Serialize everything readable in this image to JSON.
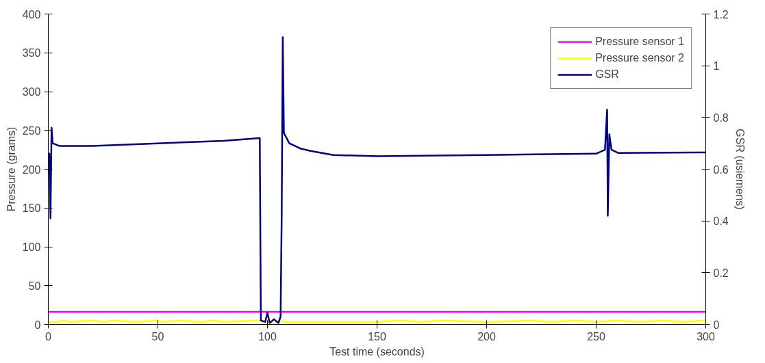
{
  "chart_data": {
    "type": "line",
    "xlabel": "Test time (seconds)",
    "ylabel": "Pressure (grams)",
    "y2label": "GSR (usiemens)",
    "xlim": [
      0,
      300
    ],
    "xticks": [
      0,
      50,
      100,
      150,
      200,
      250,
      300
    ],
    "ylim": [
      0,
      400
    ],
    "yticks": [
      0,
      50,
      100,
      150,
      200,
      250,
      300,
      350,
      400
    ],
    "y2lim": [
      0,
      1.2
    ],
    "y2ticks": [
      0,
      0.2,
      0.4,
      0.6,
      0.8,
      1,
      1.2
    ],
    "grid": false,
    "legend": "top right",
    "marker": "none",
    "line_style": "solid",
    "series": [
      {
        "name": "Pressure sensor 1",
        "color": "#ff00ff",
        "x": [
          0,
          50,
          100,
          150,
          200,
          250,
          300
        ],
        "values": [
          16,
          16,
          16,
          16,
          16,
          16,
          16
        ]
      },
      {
        "name": "Pressure sensor 2",
        "color": "#ffff00",
        "x": [
          0,
          5,
          6,
          10,
          20,
          25,
          30,
          40,
          50,
          52,
          60,
          70,
          75,
          80,
          95,
          100,
          105,
          108,
          150,
          160,
          170,
          180,
          200,
          220,
          230,
          240,
          250,
          260,
          270,
          280,
          290,
          300
        ],
        "values": [
          3,
          3,
          5,
          3,
          5,
          3,
          5,
          3,
          5,
          3,
          5,
          3,
          5,
          3,
          5,
          3,
          5,
          3,
          3,
          5,
          3,
          5,
          3,
          5,
          3,
          5,
          3,
          5,
          3,
          5,
          3,
          5
        ]
      },
      {
        "name": "GSR",
        "color": "#000080",
        "axis": "y2",
        "x": [
          0,
          0.5,
          1,
          1.5,
          2,
          5,
          20,
          50,
          80,
          96.5,
          97,
          99,
          100,
          101,
          103,
          105,
          106,
          106.5,
          107,
          107.5,
          110,
          115,
          120,
          130,
          150,
          200,
          250,
          254,
          255,
          255.3,
          256,
          257,
          260,
          300
        ],
        "values": [
          0.66,
          0.66,
          0.41,
          0.76,
          0.7,
          0.69,
          0.69,
          0.7,
          0.71,
          0.72,
          0.015,
          0.01,
          0.045,
          0.005,
          0.02,
          0.005,
          0.03,
          0.42,
          1.11,
          0.74,
          0.7,
          0.68,
          0.67,
          0.655,
          0.65,
          0.655,
          0.66,
          0.675,
          0.83,
          0.42,
          0.735,
          0.675,
          0.663,
          0.665
        ]
      }
    ]
  }
}
